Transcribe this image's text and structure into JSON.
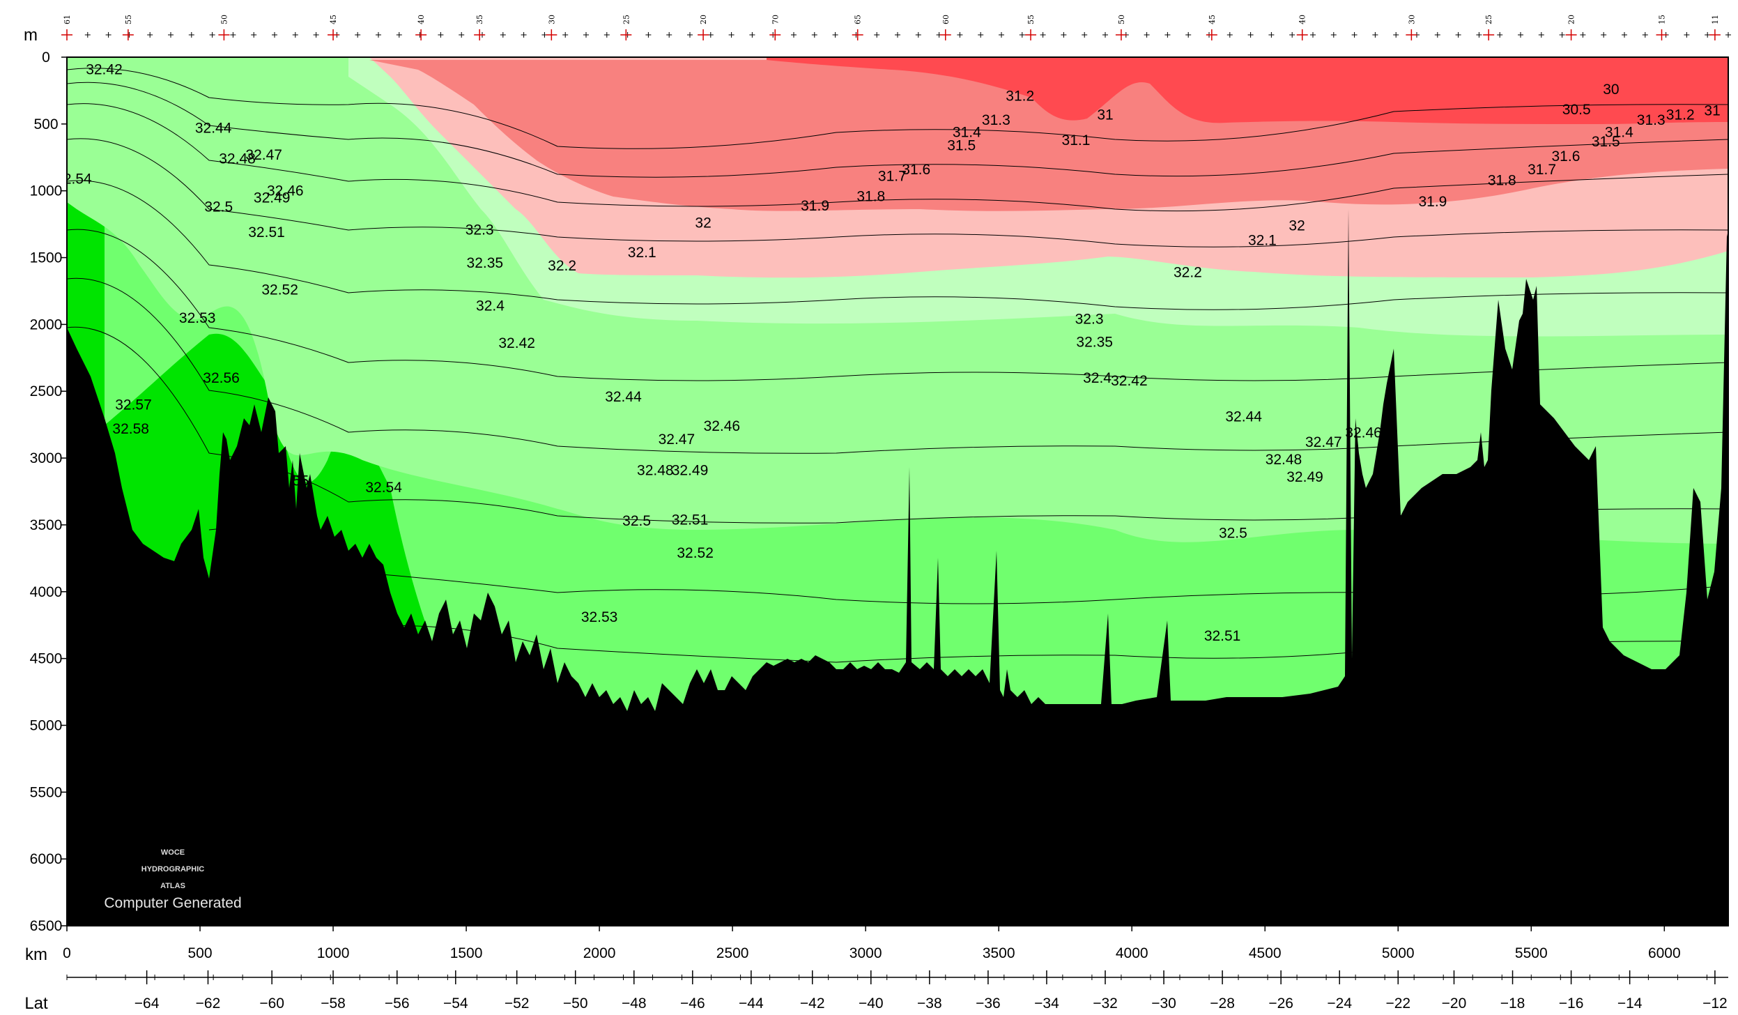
{
  "chart_data": {
    "type": "heatmap",
    "title": "",
    "ylabel": "m",
    "xlabel": "km",
    "lat_label": "Lat",
    "depth_ticks": [
      0,
      500,
      1000,
      1500,
      2000,
      2500,
      3000,
      3500,
      4000,
      4500,
      5000,
      5500,
      6000,
      6500
    ],
    "depth_range": [
      0,
      6500
    ],
    "km_ticks": [
      0,
      500,
      1000,
      1500,
      2000,
      2500,
      3000,
      3500,
      4000,
      4500,
      5000,
      5500,
      6000
    ],
    "km_range": [
      0,
      6240
    ],
    "lat_ticks": [
      {
        "label": "−64",
        "km": 300
      },
      {
        "label": "−62",
        "km": 530
      },
      {
        "label": "−60",
        "km": 770
      },
      {
        "label": "−58",
        "km": 1000
      },
      {
        "label": "−56",
        "km": 1240
      },
      {
        "label": "−54",
        "km": 1460
      },
      {
        "label": "−52",
        "km": 1690
      },
      {
        "label": "−50",
        "km": 1910
      },
      {
        "label": "−48",
        "km": 2130
      },
      {
        "label": "−46",
        "km": 2350
      },
      {
        "label": "−44",
        "km": 2570
      },
      {
        "label": "−42",
        "km": 2800
      },
      {
        "label": "−40",
        "km": 3020
      },
      {
        "label": "−38",
        "km": 3240
      },
      {
        "label": "−36",
        "km": 3460
      },
      {
        "label": "−34",
        "km": 3680
      },
      {
        "label": "−32",
        "km": 3900
      },
      {
        "label": "−30",
        "km": 4120
      },
      {
        "label": "−28",
        "km": 4340
      },
      {
        "label": "−26",
        "km": 4560
      },
      {
        "label": "−24",
        "km": 4780
      },
      {
        "label": "−22",
        "km": 5000
      },
      {
        "label": "−20",
        "km": 5210
      },
      {
        "label": "−18",
        "km": 5430
      },
      {
        "label": "−16",
        "km": 5650
      },
      {
        "label": "−14",
        "km": 5870
      },
      {
        "label": "−12",
        "km": 6190
      }
    ],
    "station_labels": [
      {
        "label": "61",
        "km": 0
      },
      {
        "label": "55",
        "km": 230
      },
      {
        "label": "50",
        "km": 590
      },
      {
        "label": "45",
        "km": 1000
      },
      {
        "label": "40",
        "km": 1330
      },
      {
        "label": "35",
        "km": 1550
      },
      {
        "label": "30",
        "km": 1820
      },
      {
        "label": "25",
        "km": 2100
      },
      {
        "label": "20",
        "km": 2390
      },
      {
        "label": "70",
        "km": 2660
      },
      {
        "label": "65",
        "km": 2970
      },
      {
        "label": "60",
        "km": 3300
      },
      {
        "label": "55",
        "km": 3620
      },
      {
        "label": "50",
        "km": 3960
      },
      {
        "label": "45",
        "km": 4300
      },
      {
        "label": "40",
        "km": 4640
      },
      {
        "label": "30",
        "km": 5050
      },
      {
        "label": "25",
        "km": 5340
      },
      {
        "label": "20",
        "km": 5650
      },
      {
        "label": "15",
        "km": 5990
      },
      {
        "label": "11",
        "km": 6190
      }
    ],
    "color_bands": [
      {
        "range": "< 31",
        "color": "#ff4a50"
      },
      {
        "range": "31 – 32",
        "color": "#f8817f"
      },
      {
        "range": "32 – 32.2",
        "color": "#fdbfbb"
      },
      {
        "range": "32.2 – 32.4",
        "color": "#c0ffbe"
      },
      {
        "range": "32.4 – 32.5",
        "color": "#9aff95"
      },
      {
        "range": "32.5 – 32.55",
        "color": "#70ff6e"
      },
      {
        "range": "32.55 – 32.6",
        "color": "#00e400"
      },
      {
        "range": "bathymetry",
        "color": "#000000"
      }
    ],
    "contour_labels": [
      {
        "text": "32.42",
        "km": 140,
        "depth": 90
      },
      {
        "text": "32.44",
        "km": 550,
        "depth": 530
      },
      {
        "text": "32.47",
        "km": 740,
        "depth": 730
      },
      {
        "text": "32.48",
        "km": 640,
        "depth": 760
      },
      {
        "text": "2.54",
        "km": 40,
        "depth": 910
      },
      {
        "text": "32.46",
        "km": 820,
        "depth": 1000
      },
      {
        "text": "32.49",
        "km": 770,
        "depth": 1050
      },
      {
        "text": "32.5",
        "km": 570,
        "depth": 1120
      },
      {
        "text": "32.51",
        "km": 750,
        "depth": 1310
      },
      {
        "text": "32.52",
        "km": 800,
        "depth": 1740
      },
      {
        "text": "32.53",
        "km": 490,
        "depth": 1950
      },
      {
        "text": "32.56",
        "km": 580,
        "depth": 2400
      },
      {
        "text": "32.57",
        "km": 250,
        "depth": 2600
      },
      {
        "text": "32.58",
        "km": 240,
        "depth": 2780
      },
      {
        "text": "32.55",
        "km": 840,
        "depth": 3170
      },
      {
        "text": "32.54",
        "km": 1190,
        "depth": 3220
      },
      {
        "text": "32.3",
        "km": 1550,
        "depth": 1290
      },
      {
        "text": "32.35",
        "km": 1570,
        "depth": 1540
      },
      {
        "text": "32.4",
        "km": 1590,
        "depth": 1860
      },
      {
        "text": "32.42",
        "km": 1690,
        "depth": 2140
      },
      {
        "text": "32.2",
        "km": 1860,
        "depth": 1560
      },
      {
        "text": "32.1",
        "km": 2160,
        "depth": 1460
      },
      {
        "text": "32",
        "km": 2390,
        "depth": 1240
      },
      {
        "text": "32.44",
        "km": 2090,
        "depth": 2540
      },
      {
        "text": "32.46",
        "km": 2460,
        "depth": 2760
      },
      {
        "text": "32.47",
        "km": 2290,
        "depth": 2860
      },
      {
        "text": "32.48",
        "km": 2210,
        "depth": 3090
      },
      {
        "text": "32.49",
        "km": 2340,
        "depth": 3090
      },
      {
        "text": "32.5",
        "km": 2140,
        "depth": 3470
      },
      {
        "text": "32.51",
        "km": 2340,
        "depth": 3460
      },
      {
        "text": "32.52",
        "km": 2360,
        "depth": 3710
      },
      {
        "text": "32.53",
        "km": 2000,
        "depth": 4190
      },
      {
        "text": "31.9",
        "km": 2810,
        "depth": 1110
      },
      {
        "text": "31.8",
        "km": 3020,
        "depth": 1040
      },
      {
        "text": "31.7",
        "km": 3100,
        "depth": 890
      },
      {
        "text": "31.6",
        "km": 3190,
        "depth": 840
      },
      {
        "text": "31.5",
        "km": 3360,
        "depth": 660
      },
      {
        "text": "31.4",
        "km": 3380,
        "depth": 560
      },
      {
        "text": "31.3",
        "km": 3490,
        "depth": 470
      },
      {
        "text": "31.2",
        "km": 3580,
        "depth": 290
      },
      {
        "text": "31.1",
        "km": 3790,
        "depth": 620
      },
      {
        "text": "31",
        "km": 3900,
        "depth": 430
      },
      {
        "text": "32.3",
        "km": 3840,
        "depth": 1960
      },
      {
        "text": "32.35",
        "km": 3860,
        "depth": 2130
      },
      {
        "text": "32.4",
        "km": 3870,
        "depth": 2400
      },
      {
        "text": "32.42",
        "km": 3990,
        "depth": 2420
      },
      {
        "text": "32.2",
        "km": 4210,
        "depth": 1610
      },
      {
        "text": "32.1",
        "km": 4490,
        "depth": 1370
      },
      {
        "text": "32",
        "km": 4620,
        "depth": 1260
      },
      {
        "text": "31.9",
        "km": 5130,
        "depth": 1080
      },
      {
        "text": "31.8",
        "km": 5390,
        "depth": 920
      },
      {
        "text": "31.7",
        "km": 5540,
        "depth": 840
      },
      {
        "text": "31.6",
        "km": 5630,
        "depth": 740
      },
      {
        "text": "31.5",
        "km": 5780,
        "depth": 630
      },
      {
        "text": "31.4",
        "km": 5830,
        "depth": 560
      },
      {
        "text": "31.3",
        "km": 5950,
        "depth": 470
      },
      {
        "text": "31.2",
        "km": 6060,
        "depth": 430
      },
      {
        "text": "31",
        "km": 6180,
        "depth": 400
      },
      {
        "text": "30.5",
        "km": 5670,
        "depth": 390
      },
      {
        "text": "30",
        "km": 5800,
        "depth": 240
      },
      {
        "text": "32.44",
        "km": 4420,
        "depth": 2690
      },
      {
        "text": "32.46",
        "km": 4870,
        "depth": 2810
      },
      {
        "text": "32.47",
        "km": 4720,
        "depth": 2880
      },
      {
        "text": "32.48",
        "km": 4570,
        "depth": 3010
      },
      {
        "text": "32.49",
        "km": 4650,
        "depth": 3140
      },
      {
        "text": "32.5",
        "km": 4380,
        "depth": 3560
      },
      {
        "text": "32.51",
        "km": 4340,
        "depth": 4330
      }
    ]
  },
  "watermark": {
    "line1": "WOCE",
    "line2": "HYDROGRAPHIC",
    "line3": "ATLAS",
    "caption": "Computer Generated"
  }
}
